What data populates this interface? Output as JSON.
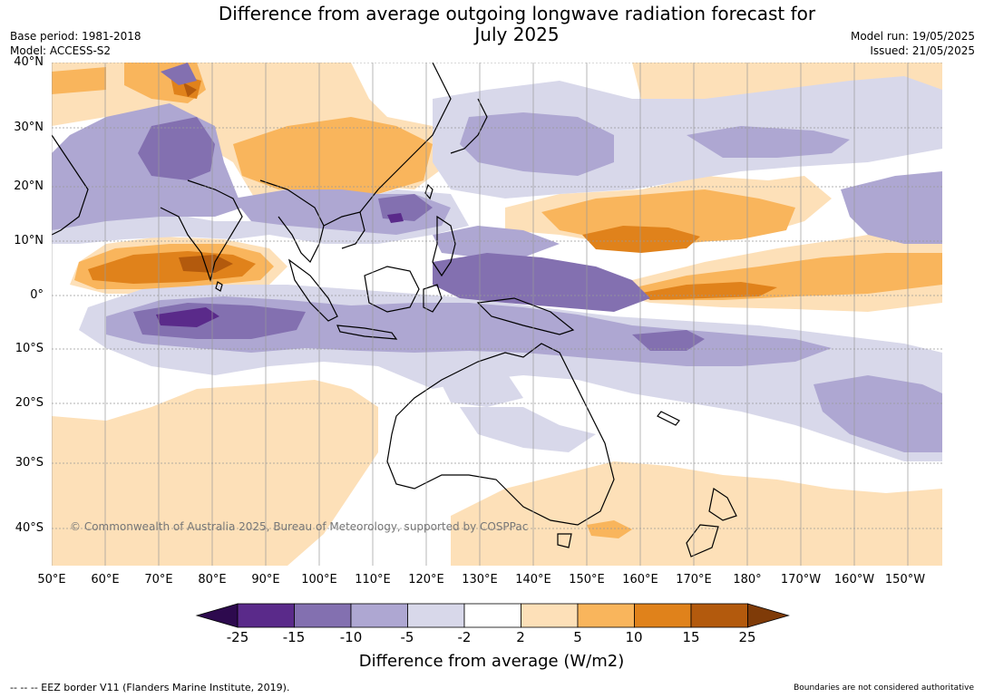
{
  "title_line1": "Difference from average outgoing longwave radiation forecast for",
  "title_line2": "July 2025",
  "base_period": "Base period: 1981-2018",
  "model": "Model: ACCESS-S2",
  "model_run": "Model run: 19/05/2025",
  "issued": "Issued: 21/05/2025",
  "lat_labels": [
    "40°N",
    "30°N",
    "20°N",
    "10°N",
    "0°",
    "10°S",
    "20°S",
    "30°S",
    "40°S"
  ],
  "lon_labels": [
    "50°E",
    "60°E",
    "70°E",
    "80°E",
    "90°E",
    "100°E",
    "110°E",
    "120°E",
    "130°E",
    "140°E",
    "150°E",
    "160°E",
    "170°E",
    "180°",
    "170°W",
    "160°W",
    "150°W"
  ],
  "copyright": "© Commonwealth of Australia 2025, Bureau of Meteorology, supported by COSPPac",
  "colorbar": {
    "ticks": [
      "-25",
      "-15",
      "-10",
      "-5",
      "-2",
      "2",
      "5",
      "10",
      "15",
      "25"
    ],
    "colors": [
      "#2d0a4e",
      "#5a2a8a",
      "#8370b0",
      "#aea7d2",
      "#d8d8ea",
      "#ffffff",
      "#fde0b8",
      "#f9b55c",
      "#e0821b",
      "#b35a0d",
      "#7f3b08"
    ],
    "label": "Difference from average (W/m2)"
  },
  "footer_left": "--  --  -- EEZ border V11 (Flanders Marine Institute, 2019).",
  "footer_right": "Boundaries are not considered authoritative"
}
